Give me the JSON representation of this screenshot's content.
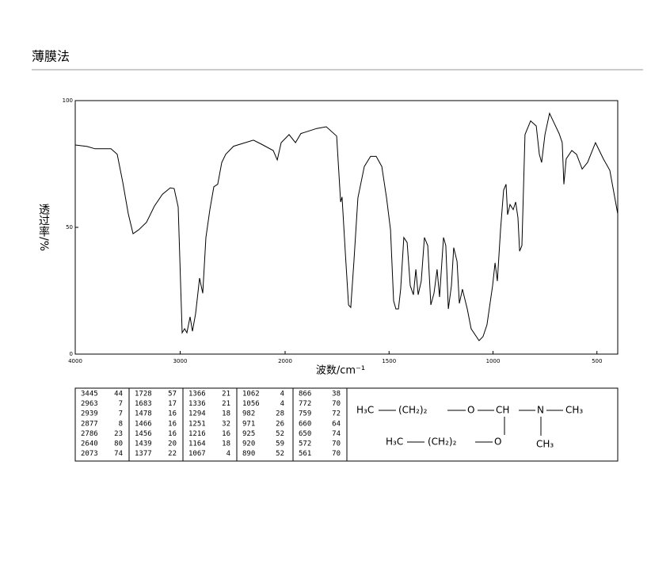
{
  "chart_data": {
    "type": "line",
    "title": "薄膜法",
    "x_label": "波数/cm⁻¹",
    "y_label": "透过率/%",
    "xlim": [
      4000,
      400
    ],
    "x_scale_break": 2000,
    "ylim": [
      0,
      100
    ],
    "xticks": [
      4000,
      3000,
      2000,
      1500,
      1000,
      500
    ],
    "yticks": [
      0,
      50,
      100
    ],
    "series": [
      {
        "color": "#000000",
        "x": [
          4000,
          3887,
          3811,
          3660,
          3600,
          3547,
          3494,
          3449,
          3396,
          3321,
          3245,
          3170,
          3094,
          3057,
          3019,
          2981,
          2958,
          2936,
          2906,
          2883,
          2853,
          2815,
          2785,
          2755,
          2717,
          2679,
          2642,
          2604,
          2566,
          2491,
          2302,
          2226,
          2113,
          2075,
          2038,
          1981,
          1950,
          1924,
          1848,
          1802,
          1752,
          1733,
          1726,
          1710,
          1695,
          1684,
          1669,
          1650,
          1619,
          1589,
          1562,
          1535,
          1512,
          1493,
          1478,
          1467,
          1455,
          1444,
          1429,
          1413,
          1398,
          1383,
          1371,
          1360,
          1345,
          1330,
          1314,
          1299,
          1284,
          1269,
          1257,
          1238,
          1227,
          1215,
          1200,
          1189,
          1173,
          1162,
          1147,
          1124,
          1105,
          1067,
          1048,
          1029,
          1002,
          990,
          979,
          964,
          949,
          937,
          930,
          918,
          903,
          891,
          880,
          872,
          861,
          846,
          819,
          792,
          777,
          766,
          750,
          728,
          705,
          682,
          667,
          659,
          648,
          621,
          598,
          571,
          545,
          507,
          469,
          438,
          400
        ],
        "values": [
          82.5,
          81.9,
          81,
          81,
          78.8,
          67.8,
          55.3,
          47.5,
          49,
          52,
          58.4,
          63,
          65.6,
          65.3,
          58,
          8.4,
          10,
          8.4,
          14.7,
          9,
          16,
          30,
          24,
          46,
          57,
          66,
          67,
          75.6,
          78.8,
          82,
          84.4,
          82.8,
          80.3,
          76.6,
          83.4,
          86.6,
          83.4,
          87,
          89,
          89.7,
          86,
          60,
          62,
          39.7,
          19.4,
          18.4,
          36.6,
          61.6,
          74,
          78,
          78,
          74,
          61.6,
          49,
          21,
          17.8,
          17.8,
          25.6,
          46,
          44,
          27,
          23.4,
          33.4,
          23.4,
          28.8,
          46,
          42.8,
          19.4,
          24,
          33.4,
          22.5,
          46,
          42.8,
          17.8,
          27,
          42,
          36.6,
          20,
          25.6,
          17.8,
          10,
          5.3,
          6.9,
          11.6,
          27,
          36,
          28.8,
          49,
          64.7,
          67,
          55,
          59,
          57,
          60,
          53.8,
          40.6,
          42.8,
          86.6,
          92,
          90,
          78.8,
          75.6,
          86.6,
          95,
          91,
          87,
          83.4,
          67,
          77,
          80.3,
          78.8,
          73,
          75.6,
          83.4,
          77,
          72.5,
          55.3
        ]
      }
    ],
    "peaks": [
      [
        [
          3445,
          44
        ],
        [
          2963,
          7
        ],
        [
          2939,
          7
        ],
        [
          2877,
          8
        ],
        [
          2786,
          23
        ],
        [
          2640,
          80
        ],
        [
          2073,
          74
        ]
      ],
      [
        [
          1728,
          57
        ],
        [
          1683,
          17
        ],
        [
          1478,
          16
        ],
        [
          1466,
          16
        ],
        [
          1456,
          16
        ],
        [
          1439,
          20
        ],
        [
          1377,
          22
        ]
      ],
      [
        [
          1366,
          21
        ],
        [
          1336,
          21
        ],
        [
          1294,
          18
        ],
        [
          1251,
          32
        ],
        [
          1216,
          16
        ],
        [
          1164,
          18
        ],
        [
          1067,
          4
        ]
      ],
      [
        [
          1062,
          4
        ],
        [
          1056,
          4
        ],
        [
          982,
          28
        ],
        [
          971,
          26
        ],
        [
          925,
          52
        ],
        [
          920,
          59
        ],
        [
          890,
          52
        ]
      ],
      [
        [
          866,
          38
        ],
        [
          772,
          70
        ],
        [
          759,
          72
        ],
        [
          660,
          64
        ],
        [
          650,
          74
        ],
        [
          572,
          70
        ],
        [
          561,
          70
        ]
      ]
    ],
    "structure": [
      "H₃C",
      "(CH₂)₂",
      "O",
      "CH",
      "N",
      "CH₃",
      "H₃C",
      "(CH₂)₂",
      "O",
      "CH₃"
    ]
  }
}
